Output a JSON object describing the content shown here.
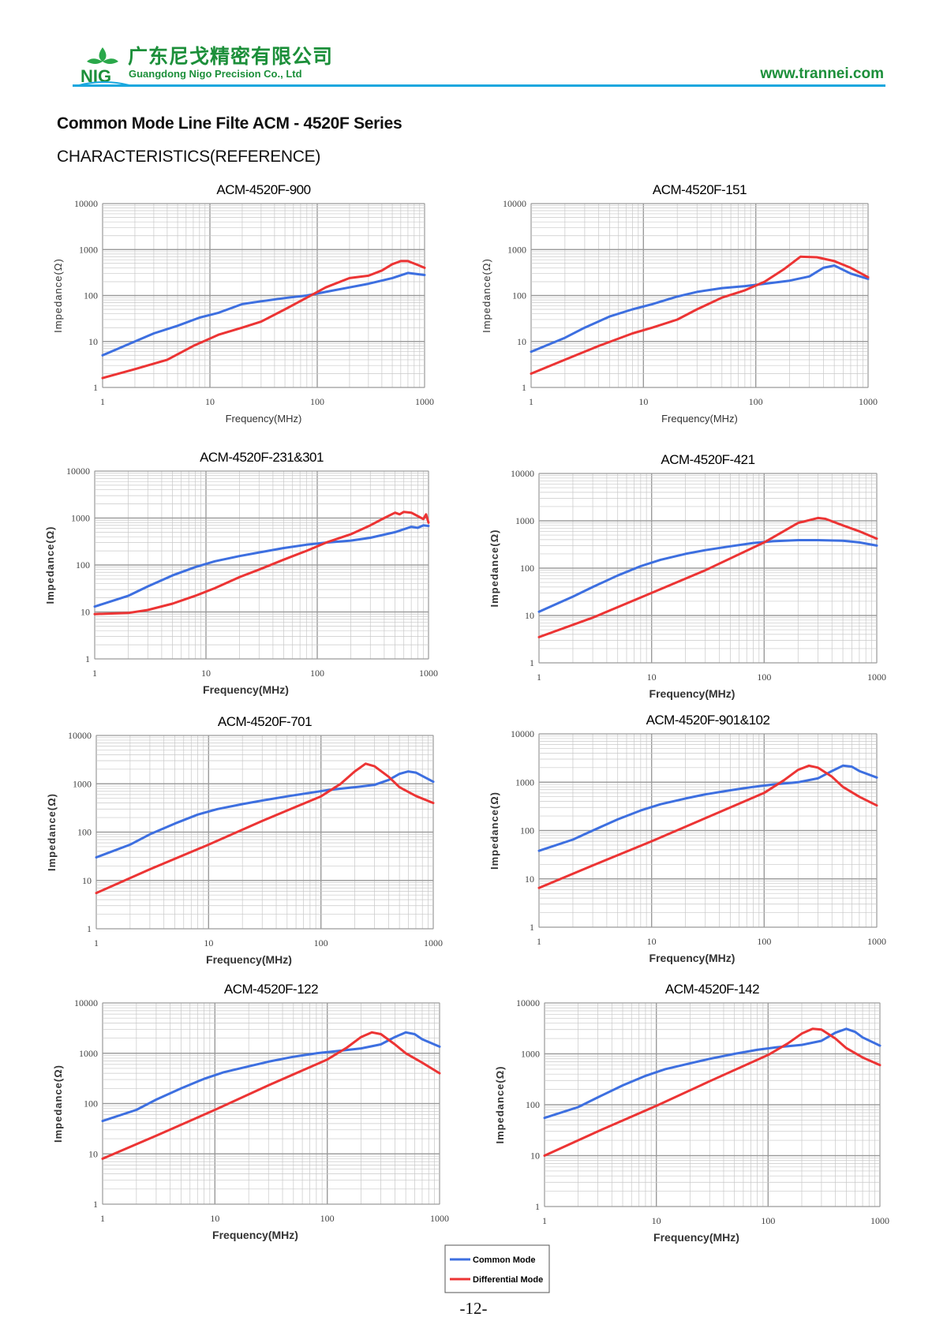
{
  "header": {
    "logo_text": "NIG",
    "company_cn": "广东尼戈精密有限公司",
    "company_en": "Guangdong Nigo Precision Co., Ltd",
    "website": "www.trannei.com"
  },
  "doc_title": "Common Mode Line Filte ACM - 4520F Series",
  "section_title": "CHARACTERISTICS(REFERENCE)",
  "page_number": "-12-",
  "legend": {
    "common": "Common Mode",
    "differential": "Differential Mode"
  },
  "colors": {
    "common_mode": "#3d6fe0",
    "differential_mode": "#ec3434",
    "grid": "#c8c8c8",
    "header_rule": "#19a7de",
    "brand_green": "#1c8f3a"
  },
  "chart_data": [
    {
      "type": "line",
      "title": "ACM-4520F-900",
      "xlabel": "Frequency(MHz)",
      "ylabel": "Impedance(Ω)",
      "x_scale": "log",
      "y_scale": "log",
      "xlim": [
        1,
        1000
      ],
      "ylim": [
        1,
        10000
      ],
      "x_ticks": [
        "1",
        "10",
        "100",
        "1000"
      ],
      "y_ticks": [
        "1",
        "10",
        "100",
        "1000",
        "10000"
      ],
      "grid": true,
      "series": [
        {
          "name": "Common Mode",
          "x": [
            1,
            2,
            3,
            5,
            8,
            12,
            20,
            30,
            50,
            80,
            120,
            200,
            300,
            500,
            700,
            1000
          ],
          "y": [
            5,
            10,
            15,
            22,
            33,
            42,
            65,
            75,
            88,
            100,
            120,
            150,
            180,
            240,
            310,
            280
          ]
        },
        {
          "name": "Differential Mode",
          "x": [
            1,
            2,
            4,
            7,
            12,
            20,
            30,
            50,
            80,
            120,
            200,
            300,
            400,
            500,
            600,
            700,
            850,
            1000
          ],
          "y": [
            1.6,
            2.5,
            4,
            8,
            14,
            20,
            27,
            50,
            90,
            150,
            240,
            270,
            350,
            480,
            560,
            560,
            470,
            400
          ]
        }
      ]
    },
    {
      "type": "line",
      "title": "ACM-4520F-151",
      "xlabel": "Frequency(MHz)",
      "ylabel": "Impedance(Ω)",
      "x_scale": "log",
      "y_scale": "log",
      "xlim": [
        1,
        1000
      ],
      "ylim": [
        1,
        10000
      ],
      "x_ticks": [
        "1",
        "10",
        "100",
        "1000"
      ],
      "y_ticks": [
        "1",
        "10",
        "100",
        "1000",
        "10000"
      ],
      "grid": true,
      "series": [
        {
          "name": "Common Mode",
          "x": [
            1,
            2,
            3,
            5,
            8,
            12,
            20,
            30,
            50,
            80,
            120,
            200,
            300,
            400,
            500,
            700,
            1000
          ],
          "y": [
            6,
            12,
            20,
            35,
            50,
            65,
            95,
            120,
            145,
            160,
            180,
            210,
            260,
            400,
            450,
            300,
            230
          ]
        },
        {
          "name": "Differential Mode",
          "x": [
            1,
            2,
            4,
            8,
            12,
            20,
            30,
            50,
            80,
            120,
            180,
            250,
            350,
            500,
            700,
            1000
          ],
          "y": [
            2,
            4,
            8,
            15,
            20,
            30,
            50,
            90,
            130,
            200,
            380,
            700,
            680,
            560,
            400,
            250
          ]
        }
      ]
    },
    {
      "type": "line",
      "title": "ACM-4520F-231&301",
      "xlabel": "Frequency(MHz)",
      "ylabel": "Impedance(Ω)",
      "x_scale": "log",
      "y_scale": "log",
      "xlim": [
        1,
        1000
      ],
      "ylim": [
        1,
        10000
      ],
      "x_ticks": [
        "1",
        "10",
        "100",
        "1000"
      ],
      "y_ticks": [
        "1",
        "10",
        "100",
        "1000",
        "10000"
      ],
      "grid": true,
      "series": [
        {
          "name": "Common Mode",
          "x": [
            1,
            2,
            3,
            5,
            8,
            12,
            20,
            30,
            50,
            80,
            120,
            200,
            300,
            500,
            700,
            800,
            900,
            1000
          ],
          "y": [
            13,
            22,
            35,
            60,
            90,
            120,
            155,
            185,
            230,
            270,
            300,
            330,
            380,
            500,
            650,
            620,
            700,
            680
          ]
        },
        {
          "name": "Differential Mode",
          "x": [
            1,
            2,
            3,
            5,
            8,
            12,
            20,
            30,
            50,
            80,
            120,
            200,
            300,
            400,
            500,
            550,
            600,
            700,
            800,
            900,
            950,
            1000
          ],
          "y": [
            9,
            9.5,
            11,
            15,
            22,
            32,
            55,
            80,
            130,
            200,
            300,
            450,
            700,
            1000,
            1300,
            1200,
            1350,
            1300,
            1100,
            950,
            1200,
            800
          ]
        }
      ]
    },
    {
      "type": "line",
      "title": "ACM-4520F-421",
      "xlabel": "Frequency(MHz)",
      "ylabel": "Impedance(Ω)",
      "x_scale": "log",
      "y_scale": "log",
      "xlim": [
        1,
        1000
      ],
      "ylim": [
        1,
        10000
      ],
      "x_ticks": [
        "1",
        "10",
        "100",
        "1000"
      ],
      "y_ticks": [
        "1",
        "10",
        "100",
        "1000",
        "10000"
      ],
      "grid": true,
      "series": [
        {
          "name": "Common Mode",
          "x": [
            1,
            2,
            3,
            5,
            8,
            12,
            20,
            30,
            50,
            80,
            120,
            200,
            300,
            500,
            700,
            1000
          ],
          "y": [
            12,
            25,
            40,
            70,
            110,
            150,
            200,
            240,
            290,
            340,
            370,
            390,
            390,
            380,
            350,
            300
          ]
        },
        {
          "name": "Differential Mode",
          "x": [
            1,
            3,
            10,
            30,
            100,
            200,
            300,
            350,
            500,
            700,
            1000
          ],
          "y": [
            3.5,
            9,
            30,
            90,
            350,
            900,
            1150,
            1100,
            800,
            600,
            420
          ]
        }
      ]
    },
    {
      "type": "line",
      "title": "ACM-4520F-701",
      "xlabel": "Frequency(MHz)",
      "ylabel": "Impedance(Ω)",
      "x_scale": "log",
      "y_scale": "log",
      "xlim": [
        1,
        1000
      ],
      "ylim": [
        1,
        10000
      ],
      "x_ticks": [
        "1",
        "10",
        "100",
        "1000"
      ],
      "y_ticks": [
        "1",
        "10",
        "100",
        "1000",
        "10000"
      ],
      "grid": true,
      "series": [
        {
          "name": "Common Mode",
          "x": [
            1,
            2,
            3,
            5,
            8,
            12,
            20,
            30,
            50,
            80,
            120,
            200,
            300,
            400,
            500,
            600,
            700,
            1000
          ],
          "y": [
            30,
            55,
            90,
            150,
            230,
            300,
            380,
            450,
            550,
            650,
            750,
            850,
            950,
            1200,
            1600,
            1800,
            1700,
            1100
          ]
        },
        {
          "name": "Differential Mode",
          "x": [
            1,
            3,
            10,
            30,
            100,
            150,
            200,
            250,
            300,
            400,
            500,
            700,
            1000
          ],
          "y": [
            5.5,
            17,
            55,
            170,
            550,
            1000,
            1800,
            2600,
            2300,
            1400,
            850,
            560,
            400
          ]
        }
      ]
    },
    {
      "type": "line",
      "title": "ACM-4520F-901&102",
      "xlabel": "Frequency(MHz)",
      "ylabel": "Impedance(Ω)",
      "x_scale": "log",
      "y_scale": "log",
      "xlim": [
        1,
        1000
      ],
      "ylim": [
        1,
        10000
      ],
      "x_ticks": [
        "1",
        "10",
        "100",
        "1000"
      ],
      "y_ticks": [
        "1",
        "10",
        "100",
        "1000",
        "10000"
      ],
      "grid": true,
      "series": [
        {
          "name": "Common Mode",
          "x": [
            1,
            2,
            3,
            5,
            8,
            12,
            20,
            30,
            50,
            80,
            120,
            200,
            300,
            400,
            500,
            600,
            700,
            1000
          ],
          "y": [
            38,
            65,
            100,
            170,
            260,
            350,
            460,
            560,
            680,
            800,
            900,
            1000,
            1200,
            1700,
            2200,
            2100,
            1700,
            1250
          ]
        },
        {
          "name": "Differential Mode",
          "x": [
            1,
            3,
            10,
            30,
            100,
            150,
            200,
            250,
            300,
            400,
            500,
            700,
            1000
          ],
          "y": [
            6.5,
            19,
            60,
            180,
            600,
            1100,
            1800,
            2200,
            2000,
            1300,
            800,
            500,
            330
          ]
        }
      ]
    },
    {
      "type": "line",
      "title": "ACM-4520F-122",
      "xlabel": "Frequency(MHz)",
      "ylabel": "Impedance(Ω)",
      "x_scale": "log",
      "y_scale": "log",
      "xlim": [
        1,
        1000
      ],
      "ylim": [
        1,
        10000
      ],
      "x_ticks": [
        "1",
        "10",
        "100",
        "1000"
      ],
      "y_ticks": [
        "1",
        "10",
        "100",
        "1000",
        "10000"
      ],
      "grid": true,
      "series": [
        {
          "name": "Common Mode",
          "x": [
            1,
            2,
            3,
            5,
            8,
            12,
            20,
            30,
            50,
            80,
            120,
            200,
            300,
            400,
            500,
            600,
            700,
            1000
          ],
          "y": [
            45,
            75,
            120,
            200,
            310,
            420,
            550,
            680,
            850,
            1000,
            1100,
            1250,
            1500,
            2100,
            2600,
            2400,
            1900,
            1350
          ]
        },
        {
          "name": "Differential Mode",
          "x": [
            1,
            3,
            10,
            30,
            100,
            150,
            200,
            250,
            300,
            400,
            500,
            700,
            1000
          ],
          "y": [
            8,
            23,
            75,
            230,
            750,
            1300,
            2100,
            2600,
            2400,
            1500,
            1000,
            650,
            400
          ]
        }
      ]
    },
    {
      "type": "line",
      "title": "ACM-4520F-142",
      "xlabel": "Frequency(MHz)",
      "ylabel": "Impedance(Ω)",
      "x_scale": "log",
      "y_scale": "log",
      "xlim": [
        1,
        1000
      ],
      "ylim": [
        1,
        10000
      ],
      "x_ticks": [
        "1",
        "10",
        "100",
        "1000"
      ],
      "y_ticks": [
        "1",
        "10",
        "100",
        "1000",
        "10000"
      ],
      "grid": true,
      "series": [
        {
          "name": "Common Mode",
          "x": [
            1,
            2,
            3,
            5,
            8,
            12,
            20,
            30,
            50,
            80,
            120,
            200,
            300,
            400,
            500,
            600,
            700,
            1000
          ],
          "y": [
            55,
            90,
            140,
            240,
            370,
            500,
            650,
            800,
            1000,
            1200,
            1350,
            1500,
            1800,
            2600,
            3100,
            2700,
            2100,
            1450
          ]
        },
        {
          "name": "Differential Mode",
          "x": [
            1,
            3,
            10,
            30,
            100,
            150,
            200,
            250,
            300,
            400,
            500,
            700,
            1000
          ],
          "y": [
            10,
            30,
            95,
            290,
            950,
            1600,
            2500,
            3100,
            3000,
            2000,
            1300,
            850,
            600
          ]
        }
      ]
    }
  ]
}
